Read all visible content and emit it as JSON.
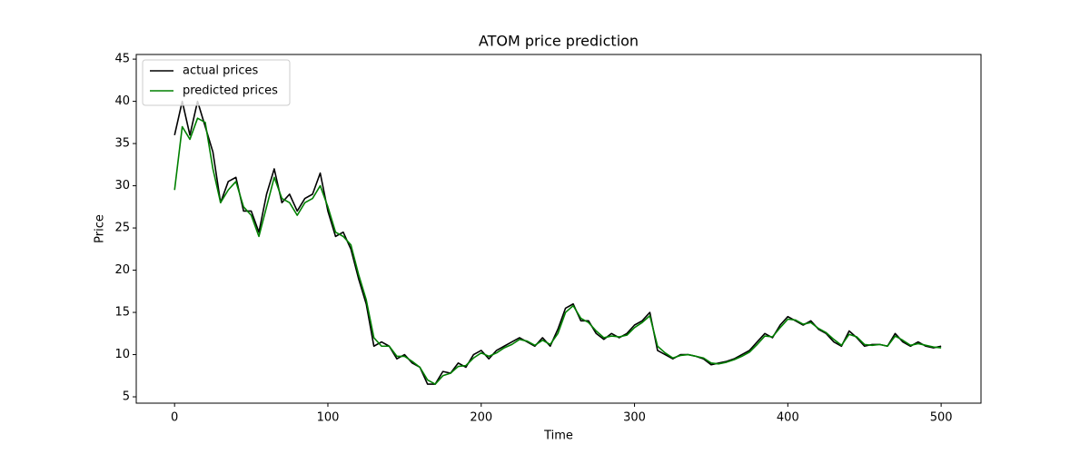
{
  "chart_data": {
    "type": "line",
    "title": "ATOM price prediction",
    "x_label": "Time",
    "y_label": "Price",
    "x": [
      0,
      5,
      10,
      15,
      20,
      25,
      30,
      35,
      40,
      45,
      50,
      55,
      60,
      65,
      70,
      75,
      80,
      85,
      90,
      95,
      100,
      105,
      110,
      115,
      120,
      125,
      130,
      135,
      140,
      145,
      150,
      155,
      160,
      165,
      170,
      175,
      180,
      185,
      190,
      195,
      200,
      205,
      210,
      215,
      220,
      225,
      230,
      235,
      240,
      245,
      250,
      255,
      260,
      265,
      270,
      275,
      280,
      285,
      290,
      295,
      300,
      305,
      310,
      315,
      320,
      325,
      330,
      335,
      340,
      345,
      350,
      355,
      360,
      365,
      370,
      375,
      380,
      385,
      390,
      395,
      400,
      405,
      410,
      415,
      420,
      425,
      430,
      435,
      440,
      445,
      450,
      455,
      460,
      465,
      470,
      475,
      480,
      485,
      490,
      495,
      500
    ],
    "series": [
      {
        "name": "actual prices",
        "color": "#000000",
        "values": [
          36,
          40,
          36,
          40,
          37,
          34,
          28,
          30.5,
          31,
          27,
          27,
          24.5,
          29,
          32,
          28,
          29,
          27,
          28.5,
          29,
          31.5,
          27,
          24,
          24.5,
          22.5,
          19,
          16,
          11,
          11.5,
          11,
          9.5,
          10,
          9,
          8.5,
          6.5,
          6.5,
          8,
          7.8,
          9,
          8.5,
          10,
          10.5,
          9.5,
          10.5,
          11,
          11.5,
          12,
          11.5,
          11,
          12,
          11,
          13,
          15.5,
          16,
          14,
          14,
          12.5,
          11.8,
          12.5,
          12,
          12.5,
          13.5,
          14,
          15,
          10.5,
          10,
          9.5,
          10,
          10,
          9.8,
          9.5,
          8.8,
          9,
          9.2,
          9.5,
          10,
          10.5,
          11.5,
          12.5,
          12,
          13.5,
          14.5,
          14,
          13.5,
          14,
          13,
          12.5,
          11.5,
          11,
          12.8,
          12,
          11,
          11.2,
          11.2,
          11,
          12.5,
          11.5,
          11,
          11.5,
          11,
          10.8,
          11
        ]
      },
      {
        "name": "predicted prices",
        "color": "#008000",
        "values": [
          29.5,
          37,
          35.5,
          38,
          37.5,
          32,
          28,
          29.5,
          30.5,
          27.5,
          26.5,
          24,
          27.5,
          31,
          28.5,
          28,
          26.5,
          28,
          28.5,
          30,
          27.5,
          24.5,
          24,
          23,
          19.5,
          16.5,
          12,
          11,
          11,
          9.8,
          9.8,
          9.2,
          8.5,
          7,
          6.5,
          7.5,
          7.8,
          8.6,
          8.7,
          9.6,
          10.2,
          9.8,
          10.2,
          10.8,
          11.2,
          11.8,
          11.6,
          11.1,
          11.7,
          11.2,
          12.5,
          15,
          15.8,
          14.3,
          13.8,
          12.8,
          12,
          12.2,
          12.1,
          12.3,
          13.2,
          13.8,
          14.6,
          11,
          10.2,
          9.6,
          9.9,
          10,
          9.8,
          9.6,
          9,
          8.9,
          9.1,
          9.4,
          9.8,
          10.3,
          11.2,
          12.2,
          12.1,
          13.2,
          14.2,
          14.1,
          13.6,
          13.8,
          13.1,
          12.6,
          11.8,
          11.1,
          12.4,
          12.1,
          11.2,
          11.1,
          11.2,
          11,
          12.2,
          11.7,
          11.1,
          11.3,
          11.1,
          10.9,
          10.8
        ]
      }
    ],
    "xlim": [
      -25,
      526
    ],
    "ylim": [
      4.25,
      45.55
    ],
    "xticks": [
      0,
      100,
      200,
      300,
      400,
      500
    ],
    "yticks": [
      5,
      10,
      15,
      20,
      25,
      30,
      35,
      40,
      45
    ],
    "legend": "upper left"
  }
}
